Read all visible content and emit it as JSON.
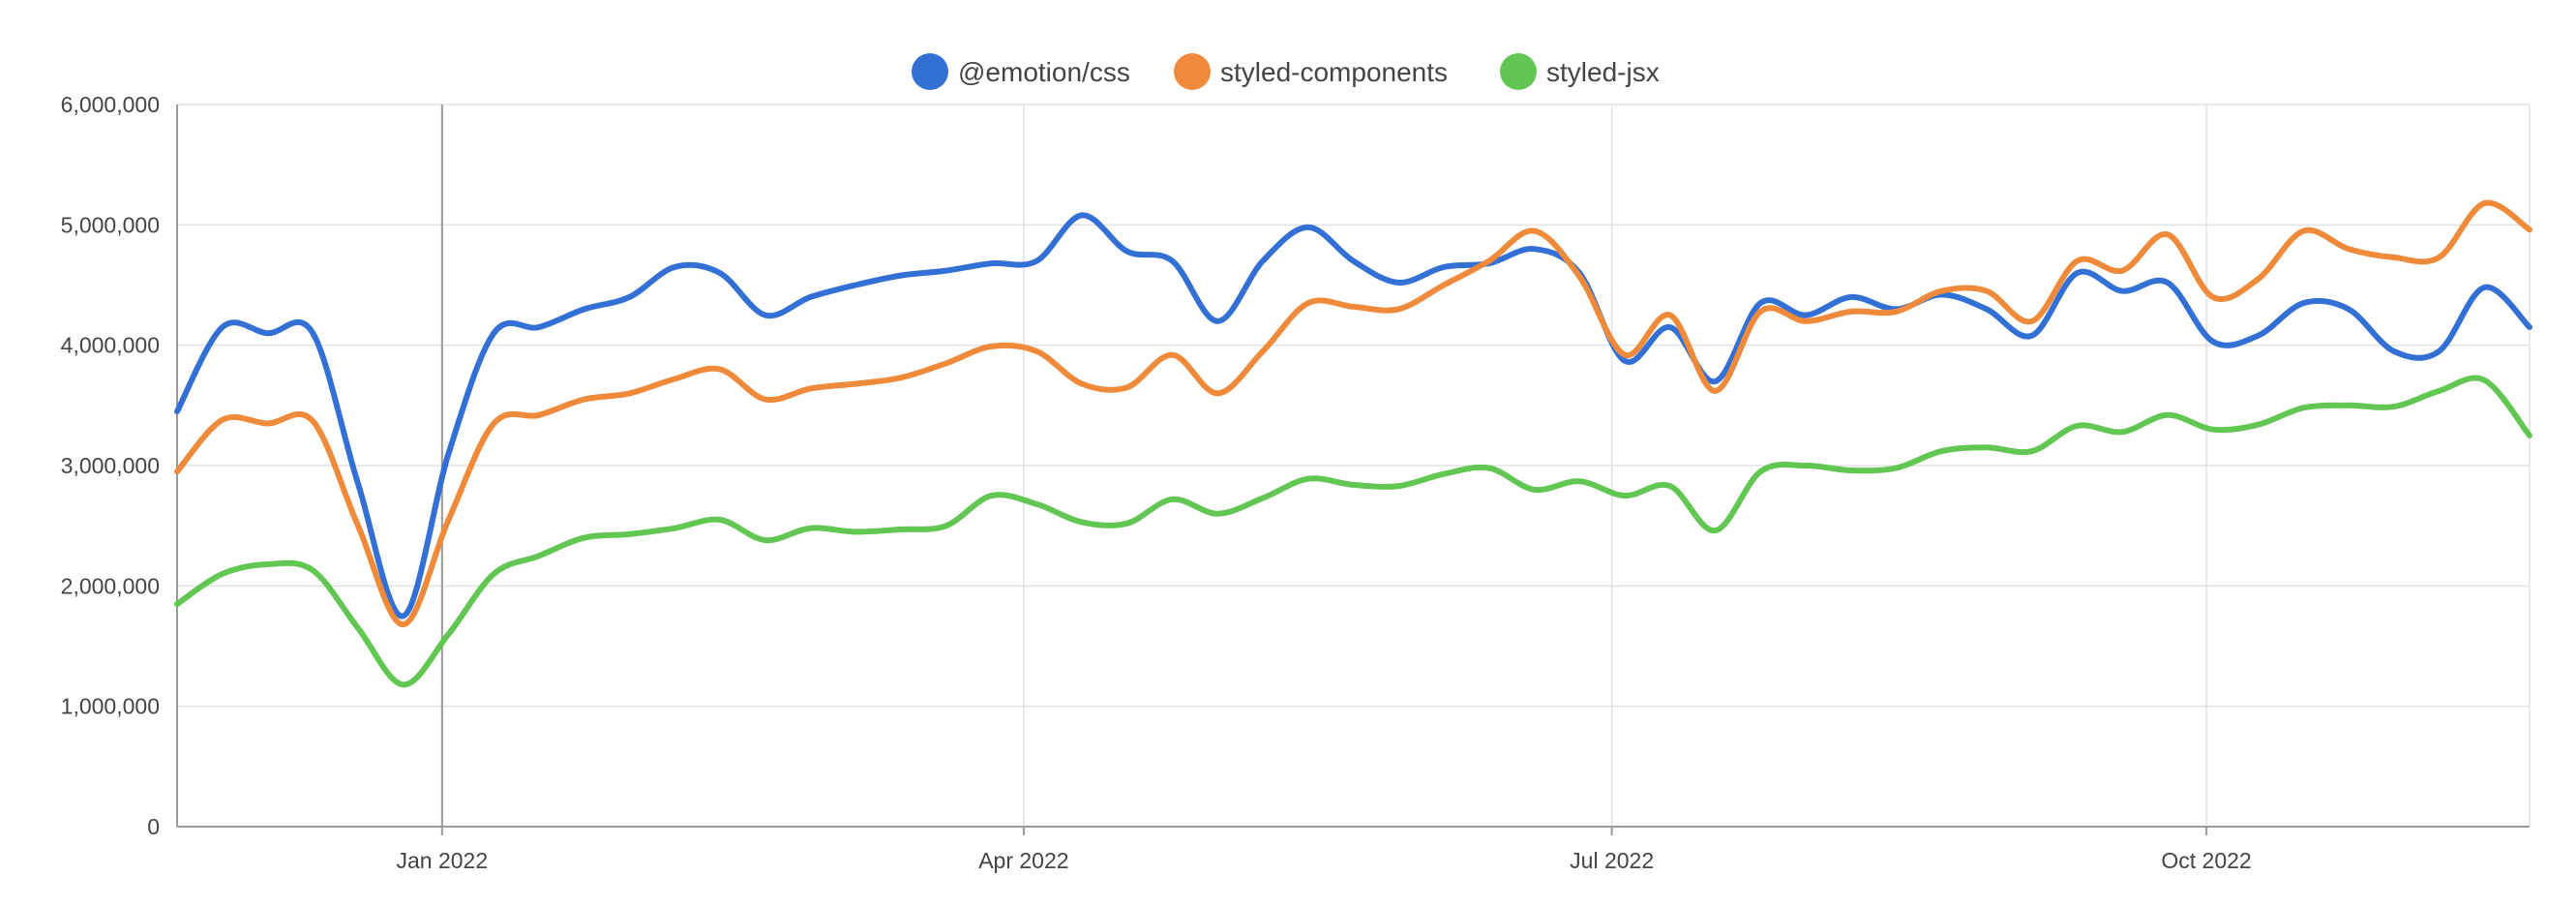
{
  "chart_data": {
    "type": "line",
    "title": "",
    "xlabel": "",
    "ylabel": "",
    "x_range": [
      "2021-11-21",
      "2022-11-20"
    ],
    "ylim": [
      0,
      6000000
    ],
    "y_ticks": [
      0,
      1000000,
      2000000,
      3000000,
      4000000,
      5000000,
      6000000
    ],
    "y_tick_labels": [
      "0",
      "1,000,000",
      "2,000,000",
      "3,000,000",
      "4,000,000",
      "5,000,000",
      "6,000,000"
    ],
    "x_ticks": [
      {
        "date": "2022-01-01",
        "label": "Jan 2022"
      },
      {
        "date": "2022-04-01",
        "label": "Apr 2022"
      },
      {
        "date": "2022-07-01",
        "label": "Jul 2022"
      },
      {
        "date": "2022-10-01",
        "label": "Oct 2022"
      }
    ],
    "grid": true,
    "legend": "top-center",
    "x": [
      "2021-11-21",
      "2021-11-28",
      "2021-12-05",
      "2021-12-12",
      "2021-12-19",
      "2021-12-26",
      "2022-01-02",
      "2022-01-09",
      "2022-01-16",
      "2022-01-23",
      "2022-01-30",
      "2022-02-06",
      "2022-02-13",
      "2022-02-20",
      "2022-02-27",
      "2022-03-06",
      "2022-03-13",
      "2022-03-20",
      "2022-03-27",
      "2022-04-03",
      "2022-04-10",
      "2022-04-17",
      "2022-04-24",
      "2022-05-01",
      "2022-05-08",
      "2022-05-15",
      "2022-05-22",
      "2022-05-29",
      "2022-06-05",
      "2022-06-12",
      "2022-06-19",
      "2022-06-26",
      "2022-07-03",
      "2022-07-10",
      "2022-07-17",
      "2022-07-24",
      "2022-07-31",
      "2022-08-07",
      "2022-08-14",
      "2022-08-21",
      "2022-08-28",
      "2022-09-04",
      "2022-09-11",
      "2022-09-18",
      "2022-09-25",
      "2022-10-02",
      "2022-10-09",
      "2022-10-16",
      "2022-10-23",
      "2022-10-30",
      "2022-11-06",
      "2022-11-13",
      "2022-11-20"
    ],
    "series": [
      {
        "name": "@emotion/css",
        "color": "#3370d6",
        "values": [
          3450000,
          4150000,
          4100000,
          4100000,
          2850000,
          1750000,
          3100000,
          4100000,
          4150000,
          4300000,
          4400000,
          4650000,
          4600000,
          4250000,
          4400000,
          4500000,
          4580000,
          4620000,
          4680000,
          4700000,
          5080000,
          4780000,
          4700000,
          4200000,
          4700000,
          4980000,
          4700000,
          4520000,
          4650000,
          4680000,
          4800000,
          4600000,
          3870000,
          4150000,
          3700000,
          4350000,
          4250000,
          4400000,
          4300000,
          4420000,
          4300000,
          4080000,
          4600000,
          4450000,
          4520000,
          4030000,
          4080000,
          4350000,
          4300000,
          3950000,
          3950000,
          4480000,
          4150000
        ]
      },
      {
        "name": "styled-components",
        "color": "#f08a3b",
        "values": [
          2950000,
          3380000,
          3350000,
          3370000,
          2500000,
          1680000,
          2550000,
          3350000,
          3420000,
          3550000,
          3600000,
          3720000,
          3800000,
          3550000,
          3640000,
          3680000,
          3730000,
          3850000,
          3990000,
          3950000,
          3680000,
          3650000,
          3920000,
          3600000,
          3950000,
          4350000,
          4320000,
          4300000,
          4500000,
          4700000,
          4950000,
          4570000,
          3920000,
          4250000,
          3620000,
          4280000,
          4200000,
          4280000,
          4280000,
          4450000,
          4450000,
          4200000,
          4700000,
          4620000,
          4920000,
          4400000,
          4550000,
          4950000,
          4800000,
          4730000,
          4730000,
          5180000,
          4960000
        ]
      },
      {
        "name": "styled-jsx",
        "color": "#62c653",
        "values": [
          1850000,
          2100000,
          2180000,
          2130000,
          1650000,
          1180000,
          1600000,
          2100000,
          2250000,
          2400000,
          2430000,
          2480000,
          2550000,
          2380000,
          2480000,
          2450000,
          2470000,
          2500000,
          2750000,
          2680000,
          2530000,
          2520000,
          2720000,
          2600000,
          2730000,
          2890000,
          2840000,
          2830000,
          2930000,
          2980000,
          2800000,
          2870000,
          2750000,
          2830000,
          2460000,
          2950000,
          3000000,
          2960000,
          2980000,
          3120000,
          3150000,
          3120000,
          3330000,
          3280000,
          3420000,
          3300000,
          3340000,
          3480000,
          3500000,
          3490000,
          3620000,
          3710000,
          3250000
        ]
      }
    ]
  }
}
